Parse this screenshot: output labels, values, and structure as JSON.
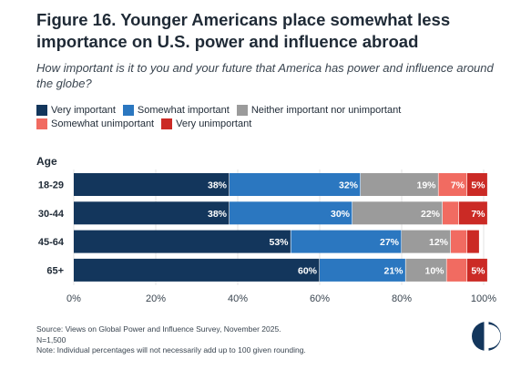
{
  "header": {
    "title": "Figure 16. Younger Americans place somewhat less importance on U.S. power and influence abroad",
    "subtitle": "How important is it to you and your future that America has power and influence around the globe?"
  },
  "legend": {
    "items": [
      {
        "label": "Very important",
        "color": "#13365c"
      },
      {
        "label": "Somewhat important",
        "color": "#2b77c0"
      },
      {
        "label": "Neither important nor unimportant",
        "color": "#9b9b9b"
      },
      {
        "label": "Somewhat unimportant",
        "color": "#f16b61"
      },
      {
        "label": "Very unimportant",
        "color": "#cb2a25"
      }
    ]
  },
  "chart_data": {
    "type": "bar",
    "orientation": "horizontal",
    "stacked": true,
    "y_axis_title": "Age",
    "categories": [
      "18-29",
      "30-44",
      "45-64",
      "65+"
    ],
    "series": [
      {
        "name": "Very important",
        "color": "#13365c",
        "values": [
          38,
          38,
          53,
          60
        ],
        "labels": [
          "38%",
          "38%",
          "53%",
          "60%"
        ]
      },
      {
        "name": "Somewhat important",
        "color": "#2b77c0",
        "values": [
          32,
          30,
          27,
          21
        ],
        "labels": [
          "32%",
          "30%",
          "27%",
          "21%"
        ]
      },
      {
        "name": "Neither important nor unimportant",
        "color": "#9b9b9b",
        "values": [
          19,
          22,
          12,
          10
        ],
        "labels": [
          "19%",
          "22%",
          "12%",
          "10%"
        ]
      },
      {
        "name": "Somewhat unimportant",
        "color": "#f16b61",
        "values": [
          7,
          4,
          4,
          5
        ],
        "labels": [
          "7%",
          "",
          "",
          ""
        ]
      },
      {
        "name": "Very unimportant",
        "color": "#cb2a25",
        "values": [
          5,
          7,
          3,
          5
        ],
        "labels": [
          "5%",
          "7%",
          "",
          "5%"
        ]
      }
    ],
    "x_ticks": [
      "0%",
      "20%",
      "40%",
      "60%",
      "80%",
      "100%"
    ],
    "xlim": [
      0,
      100
    ],
    "grid": true,
    "legend_position": "top"
  },
  "footer": {
    "source": "Source: Views on Global Power and Influence Survey, November 2025.",
    "n": "N=1,500",
    "note": "Note: Individual percentages will not necessarily add up to 100 given rounding."
  },
  "logo": {
    "dark_color": "#13365c"
  }
}
